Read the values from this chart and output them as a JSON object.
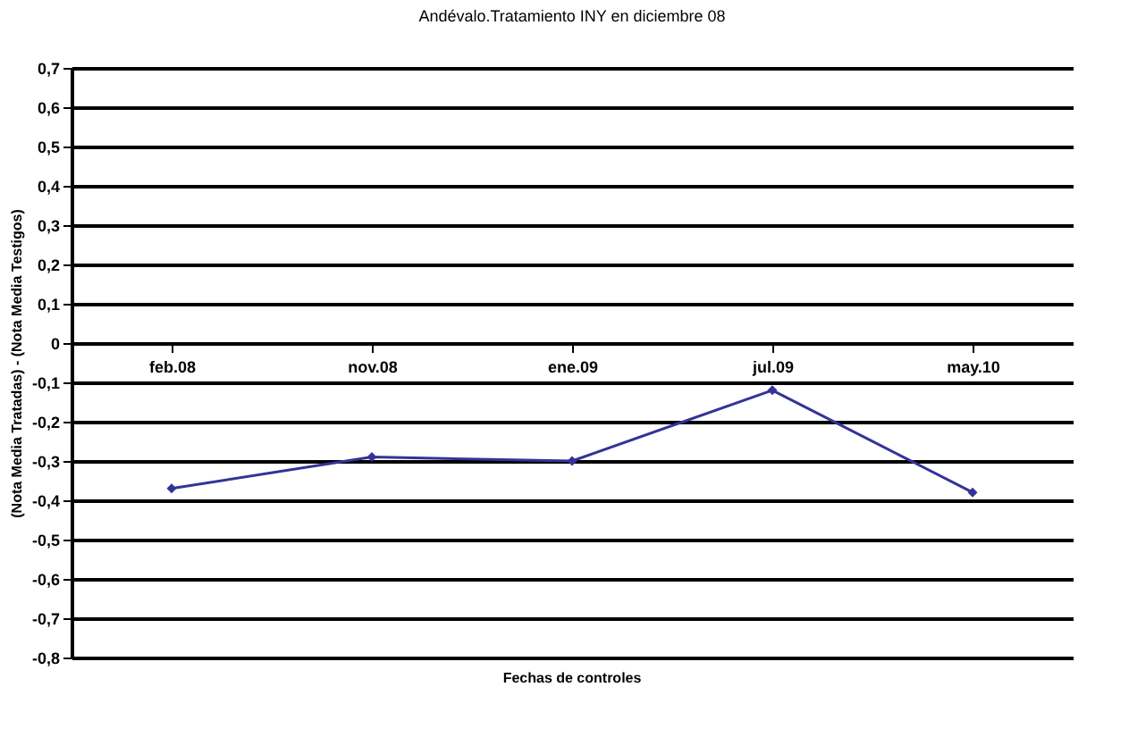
{
  "chart_data": {
    "type": "line",
    "title": "Andévalo.Tratamiento INY en diciembre 08",
    "xlabel": "Fechas de controles",
    "ylabel": "(Nota Media Tratadas) - (Nota Media Testigos)",
    "categories": [
      "feb.08",
      "nov.08",
      "ene.09",
      "jul.09",
      "may.10"
    ],
    "series": [
      {
        "color": "#333399",
        "values": [
          -0.37,
          -0.29,
          -0.3,
          -0.12,
          -0.38
        ]
      }
    ],
    "ylim": [
      -0.8,
      0.7
    ],
    "yticks": [
      {
        "value": -0.8,
        "label": "-0,8"
      },
      {
        "value": -0.7,
        "label": "-0,7"
      },
      {
        "value": -0.6,
        "label": "-0,6"
      },
      {
        "value": -0.5,
        "label": "-0,5"
      },
      {
        "value": -0.4,
        "label": "-0,4"
      },
      {
        "value": -0.3,
        "label": "-0,3"
      },
      {
        "value": -0.2,
        "label": "-0,2"
      },
      {
        "value": -0.1,
        "label": "-0,1"
      },
      {
        "value": 0,
        "label": "0"
      },
      {
        "value": 0.1,
        "label": "0,1"
      },
      {
        "value": 0.2,
        "label": "0,2"
      },
      {
        "value": 0.3,
        "label": "0,3"
      },
      {
        "value": 0.4,
        "label": "0,4"
      },
      {
        "value": 0.5,
        "label": "0,5"
      },
      {
        "value": 0.6,
        "label": "0,6"
      },
      {
        "value": 0.7,
        "label": "0,7"
      }
    ],
    "grid": "y",
    "marker": "diamond",
    "line_style": "solid"
  }
}
